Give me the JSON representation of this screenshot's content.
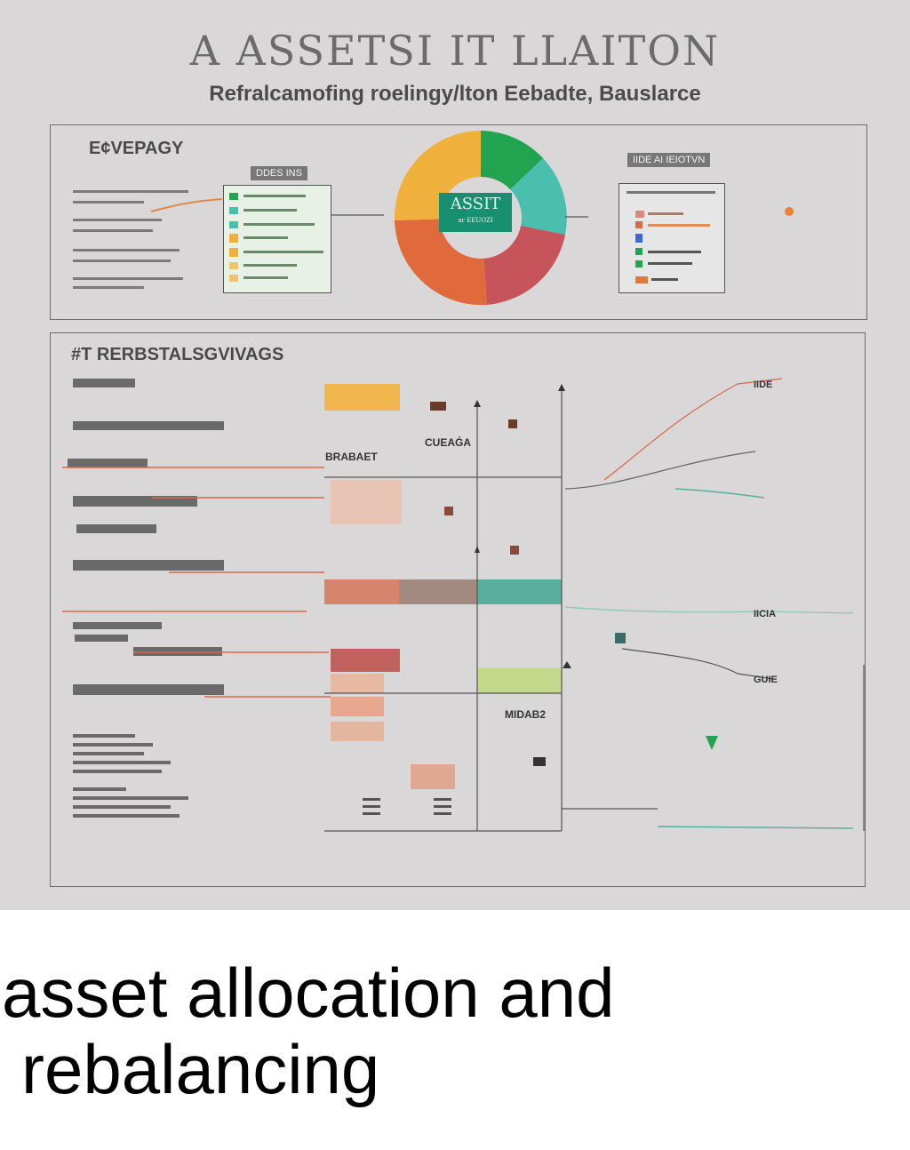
{
  "poster": {
    "title": "A ASSETSI IT LLAITON",
    "subtitle": "Refralcamofing roelingy/lton Eebadte, Bauslarce"
  },
  "top_panel": {
    "heading": "E¢VEPAGY",
    "tag_left": "DDES INS",
    "tag_right": "IIDE AI IEIOTVN",
    "pie_label": "ASSIT",
    "pie_sublabel": "ar EEUOZI"
  },
  "bottom_panel": {
    "heading": "#T RERBSTALSGVIVAGS",
    "row_labels": [
      "BRABAET",
      "CUEAǴA",
      "MIDAB2"
    ],
    "side_labels": [
      "IIDE",
      "GUIE",
      "IICIA"
    ]
  },
  "caption": {
    "line1": "asset allocation and",
    "line2": "rebalancing"
  },
  "colors": {
    "pie": [
      "#f0b13c",
      "#22a34f",
      "#4bbfad",
      "#c7535b",
      "#e06a3c"
    ],
    "bars": [
      "#f0b54c",
      "#d6856c",
      "#7fb7a4",
      "#c2625e",
      "#a7c960",
      "#e8b9a2"
    ]
  }
}
